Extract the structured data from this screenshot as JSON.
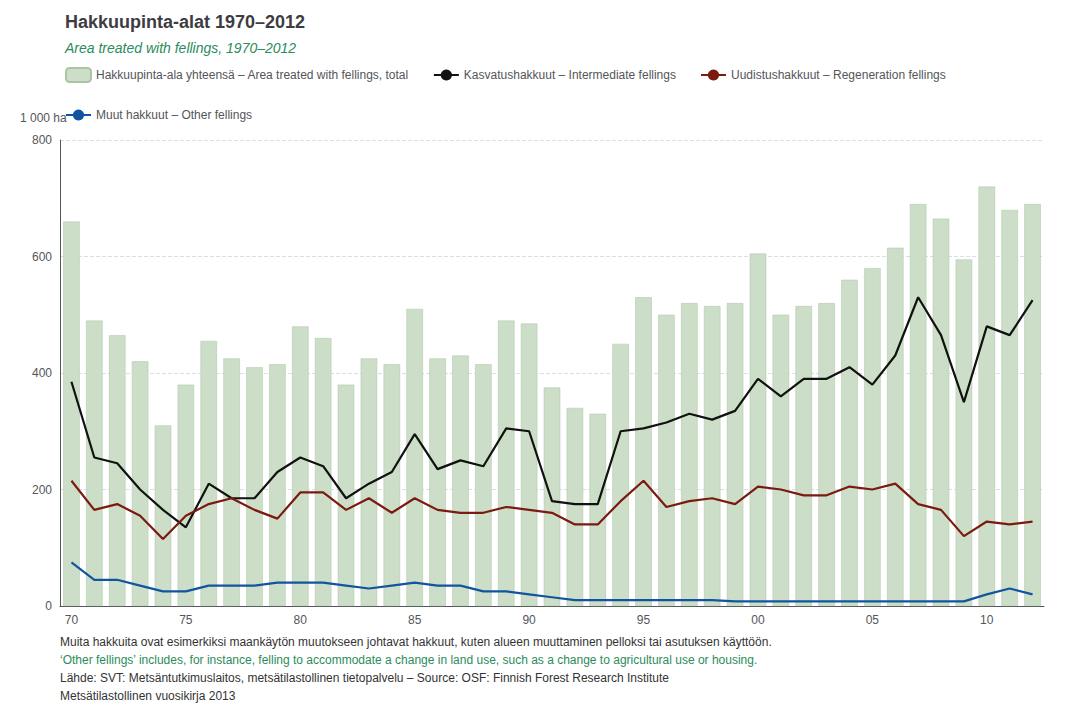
{
  "chart_data": {
    "type": "bar",
    "title": "Hakkuupinta-alat 1970–2012",
    "subtitle": "Area treated with fellings, 1970–2012",
    "ylabel": "1 000 ha",
    "annotations": [
      "Muita hakkuita ovat esimerkiksi maankäytön muutokseen johtavat hakkuut, kuten alueen muuttaminen pelloksi tai asutuksen käyttöön.",
      "‘Other fellings’ includes, for instance, felling to accommodate a change in land use, such as a change to agricultural use or housing.",
      "Lähde: SVT: Metsäntutkimuslaitos, metsätilastollinen tietopalvelu – Source: OSF: Finnish Forest Research Institute",
      "Metsätilastollinen vuosikirja 2013"
    ],
    "categories": [
      "70",
      null,
      null,
      null,
      null,
      "75",
      null,
      null,
      null,
      null,
      "80",
      null,
      null,
      null,
      null,
      "85",
      null,
      null,
      null,
      null,
      "90",
      null,
      null,
      null,
      null,
      "95",
      null,
      null,
      null,
      null,
      "00",
      null,
      null,
      null,
      null,
      "05",
      null,
      null,
      null,
      null,
      "10",
      null,
      null
    ],
    "series": [
      {
        "name": "Hakkuupinta-ala yhteensä – Area treated with fellings, total",
        "type": "bar",
        "color": "#cddec8",
        "values": [
          660,
          490,
          465,
          420,
          310,
          380,
          455,
          425,
          410,
          415,
          480,
          460,
          380,
          425,
          415,
          510,
          425,
          430,
          415,
          490,
          485,
          375,
          340,
          330,
          450,
          530,
          500,
          520,
          515,
          520,
          605,
          500,
          515,
          520,
          560,
          580,
          615,
          690,
          665,
          595,
          720,
          680,
          690
        ]
      },
      {
        "name": "Kasvatushakkuut – Intermediate fellings",
        "type": "line",
        "color": "#111111",
        "values": [
          385,
          255,
          245,
          200,
          165,
          135,
          210,
          185,
          185,
          230,
          255,
          240,
          185,
          210,
          230,
          295,
          235,
          250,
          240,
          305,
          300,
          180,
          175,
          175,
          300,
          305,
          315,
          330,
          320,
          335,
          390,
          360,
          390,
          390,
          410,
          380,
          430,
          530,
          465,
          350,
          480,
          465,
          525
        ]
      },
      {
        "name": "Uudistushakkuut – Regeneration fellings",
        "type": "line",
        "color": "#7a1a10",
        "values": [
          215,
          165,
          175,
          155,
          115,
          155,
          175,
          185,
          165,
          150,
          195,
          195,
          165,
          185,
          160,
          185,
          165,
          160,
          160,
          170,
          165,
          160,
          140,
          140,
          180,
          215,
          170,
          180,
          185,
          175,
          205,
          200,
          190,
          190,
          205,
          200,
          210,
          175,
          165,
          120,
          145,
          140,
          145
        ]
      },
      {
        "name": "Muut hakkuut – Other fellings",
        "type": "line",
        "color": "#1155a0",
        "values": [
          75,
          45,
          45,
          35,
          25,
          25,
          35,
          35,
          35,
          40,
          40,
          40,
          35,
          30,
          35,
          40,
          35,
          35,
          25,
          25,
          20,
          15,
          10,
          10,
          10,
          10,
          10,
          10,
          10,
          8,
          8,
          8,
          8,
          8,
          8,
          8,
          8,
          8,
          8,
          8,
          20,
          30,
          20
        ]
      }
    ],
    "ylim": [
      0,
      800
    ],
    "yticks": [
      0,
      200,
      400,
      600,
      800
    ],
    "grid": true,
    "legend": "upper left"
  }
}
